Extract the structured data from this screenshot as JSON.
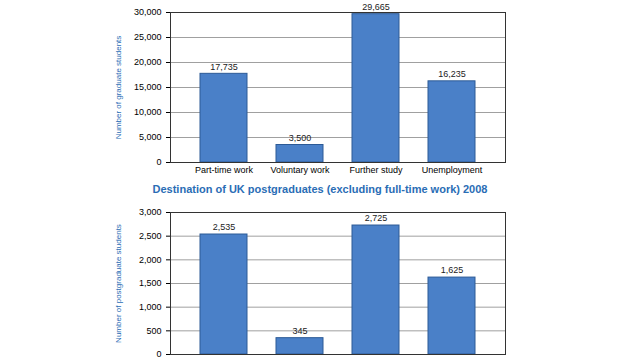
{
  "chart_data": [
    {
      "type": "bar",
      "categories": [
        "Part-time work",
        "Voluntary work",
        "Further study",
        "Unemployment"
      ],
      "values": [
        17735,
        3500,
        29665,
        16235
      ],
      "value_labels": [
        "17,735",
        "3,500",
        "29,665",
        "16,235"
      ],
      "data_labels": true,
      "color": "#4a80c8",
      "y_label": "Number of graduate students",
      "ylim": [
        0,
        30000
      ],
      "yticks": [
        0,
        {
          "value": 5000,
          "label": "5,000"
        },
        {
          "value": 10000,
          "label": "10,000"
        },
        {
          "value": 15000,
          "label": "15,000"
        },
        {
          "value": 20000,
          "label": "20,000"
        },
        {
          "value": 25000,
          "label": "25,000"
        },
        {
          "value": 30000,
          "label": "30,000"
        }
      ],
      "grid": true
    },
    {
      "type": "bar",
      "title": "Destination of UK postgraduates (excluding full-time work) 2008",
      "categories": [
        null,
        null,
        null,
        null
      ],
      "values": [
        2535,
        345,
        2725,
        1625
      ],
      "value_labels": [
        "2,535",
        "345",
        "2,725",
        "1,625"
      ],
      "data_labels": true,
      "color": "#4a80c8",
      "y_label": "Number of postgraduate students",
      "ylim": [
        0,
        3000
      ],
      "yticks": [
        0,
        500,
        {
          "value": 1000,
          "label": "1,000"
        },
        {
          "value": 1500,
          "label": "1,500"
        },
        {
          "value": 2000,
          "label": "2,000"
        },
        {
          "value": 2500,
          "label": "2,500"
        },
        {
          "value": 3000,
          "label": "3,000"
        }
      ],
      "grid": true,
      "tick_labels": "y"
    }
  ]
}
